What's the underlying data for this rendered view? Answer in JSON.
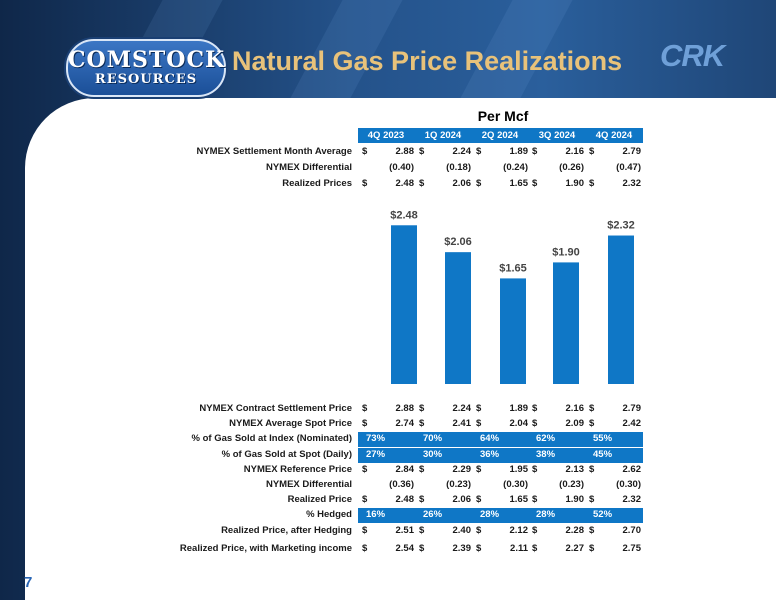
{
  "slide": {
    "logo_line1": "COMSTOCK",
    "logo_line2": "RESOURCES",
    "title": "Natural Gas Price Realizations",
    "ticker": "CRK",
    "page_number": "7",
    "unit_heading": "Per Mcf"
  },
  "quarters": [
    "4Q 2023",
    "1Q 2024",
    "2Q 2024",
    "3Q 2024",
    "4Q 2024"
  ],
  "top_table": [
    {
      "label": "NYMEX Settlement Month Average",
      "dollar": true,
      "values": [
        "2.88",
        "2.24",
        "1.89",
        "2.16",
        "2.79"
      ]
    },
    {
      "label": "NYMEX Differential",
      "dollar": false,
      "values": [
        "(0.40)",
        "(0.18)",
        "(0.24)",
        "(0.26)",
        "(0.47)"
      ]
    },
    {
      "label": "Realized Prices",
      "dollar": true,
      "values": [
        "2.48",
        "2.06",
        "1.65",
        "1.90",
        "2.32"
      ]
    }
  ],
  "chart_data": {
    "type": "bar",
    "categories": [
      "4Q 2023",
      "1Q 2024",
      "2Q 2024",
      "3Q 2024",
      "4Q 2024"
    ],
    "values": [
      2.48,
      2.06,
      1.65,
      1.9,
      2.32
    ],
    "data_labels": [
      "$2.48",
      "$2.06",
      "$1.65",
      "$1.90",
      "$2.32"
    ],
    "title": "",
    "xlabel": "",
    "ylabel": "",
    "ylim": [
      0,
      2.5
    ],
    "grid": false,
    "bar_color": "#0f77c6"
  },
  "bottom_table": [
    {
      "label": "NYMEX Contract Settlement Price",
      "dollar": true,
      "highlight": false,
      "values": [
        "2.88",
        "2.24",
        "1.89",
        "2.16",
        "2.79"
      ]
    },
    {
      "label": "NYMEX Average Spot Price",
      "dollar": true,
      "highlight": false,
      "values": [
        "2.74",
        "2.41",
        "2.04",
        "2.09",
        "2.42"
      ]
    },
    {
      "label": "% of Gas Sold at Index (Nominated)",
      "dollar": false,
      "highlight": true,
      "values": [
        "73%",
        "70%",
        "64%",
        "62%",
        "55%"
      ]
    },
    {
      "label": "% of Gas Sold at Spot (Daily)",
      "dollar": false,
      "highlight": true,
      "values": [
        "27%",
        "30%",
        "36%",
        "38%",
        "45%"
      ]
    },
    {
      "label": "NYMEX Reference Price",
      "dollar": true,
      "highlight": false,
      "values": [
        "2.84",
        "2.29",
        "1.95",
        "2.13",
        "2.62"
      ]
    },
    {
      "label": "NYMEX Differential",
      "dollar": false,
      "highlight": false,
      "values": [
        "(0.36)",
        "(0.23)",
        "(0.30)",
        "(0.23)",
        "(0.30)"
      ]
    },
    {
      "label": "Realized Price",
      "dollar": true,
      "highlight": false,
      "values": [
        "2.48",
        "2.06",
        "1.65",
        "1.90",
        "2.32"
      ]
    },
    {
      "label": "% Hedged",
      "dollar": false,
      "highlight": true,
      "values": [
        "16%",
        "26%",
        "28%",
        "28%",
        "52%"
      ]
    },
    {
      "label": "Realized Price, after Hedging",
      "dollar": true,
      "highlight": false,
      "values": [
        "2.51",
        "2.40",
        "2.12",
        "2.28",
        "2.70"
      ]
    },
    {
      "label": "Realized Price, with Marketing income",
      "dollar": true,
      "highlight": false,
      "values": [
        "2.54",
        "2.39",
        "2.11",
        "2.27",
        "2.75"
      ]
    }
  ],
  "colors": {
    "accent": "#0f77c6",
    "title": "#e8c27a",
    "page_number": "#2a66b5"
  }
}
